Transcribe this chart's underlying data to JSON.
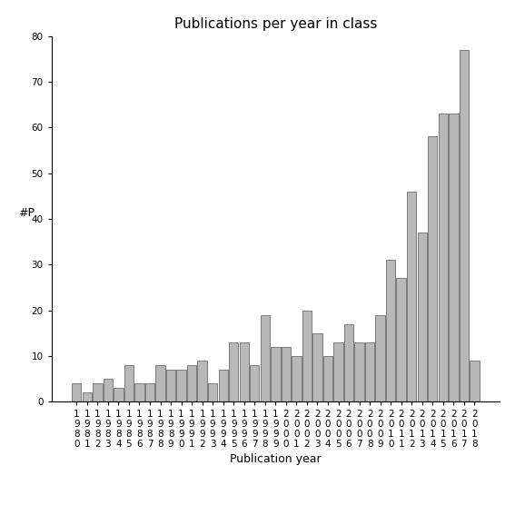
{
  "title": "Publications per year in class",
  "xlabel": "Publication year",
  "ylabel": "#P",
  "years": [
    "1980",
    "1981",
    "1982",
    "1983",
    "1984",
    "1985",
    "1986",
    "1987",
    "1988",
    "1989",
    "1990",
    "1991",
    "1992",
    "1993",
    "1994",
    "1995",
    "1996",
    "1997",
    "1998",
    "1999",
    "2000",
    "2001",
    "2002",
    "2003",
    "2004",
    "2005",
    "2006",
    "2007",
    "2008",
    "2009",
    "2010",
    "2011",
    "2012",
    "2013",
    "2014",
    "2015",
    "2016",
    "2017",
    "2018"
  ],
  "values": [
    4,
    2,
    4,
    5,
    3,
    8,
    4,
    4,
    8,
    7,
    7,
    8,
    9,
    4,
    7,
    13,
    13,
    8,
    19,
    12,
    12,
    10,
    20,
    15,
    10,
    13,
    17,
    13,
    13,
    19,
    31,
    27,
    46,
    37,
    58,
    63,
    63,
    77,
    9
  ],
  "bar_color": "#b8b8b8",
  "bar_edgecolor": "#555555",
  "ylim": [
    0,
    80
  ],
  "yticks": [
    0,
    10,
    20,
    30,
    40,
    50,
    60,
    70,
    80
  ],
  "background_color": "#ffffff",
  "title_fontsize": 11,
  "axis_label_fontsize": 9,
  "tick_fontsize": 7.5
}
